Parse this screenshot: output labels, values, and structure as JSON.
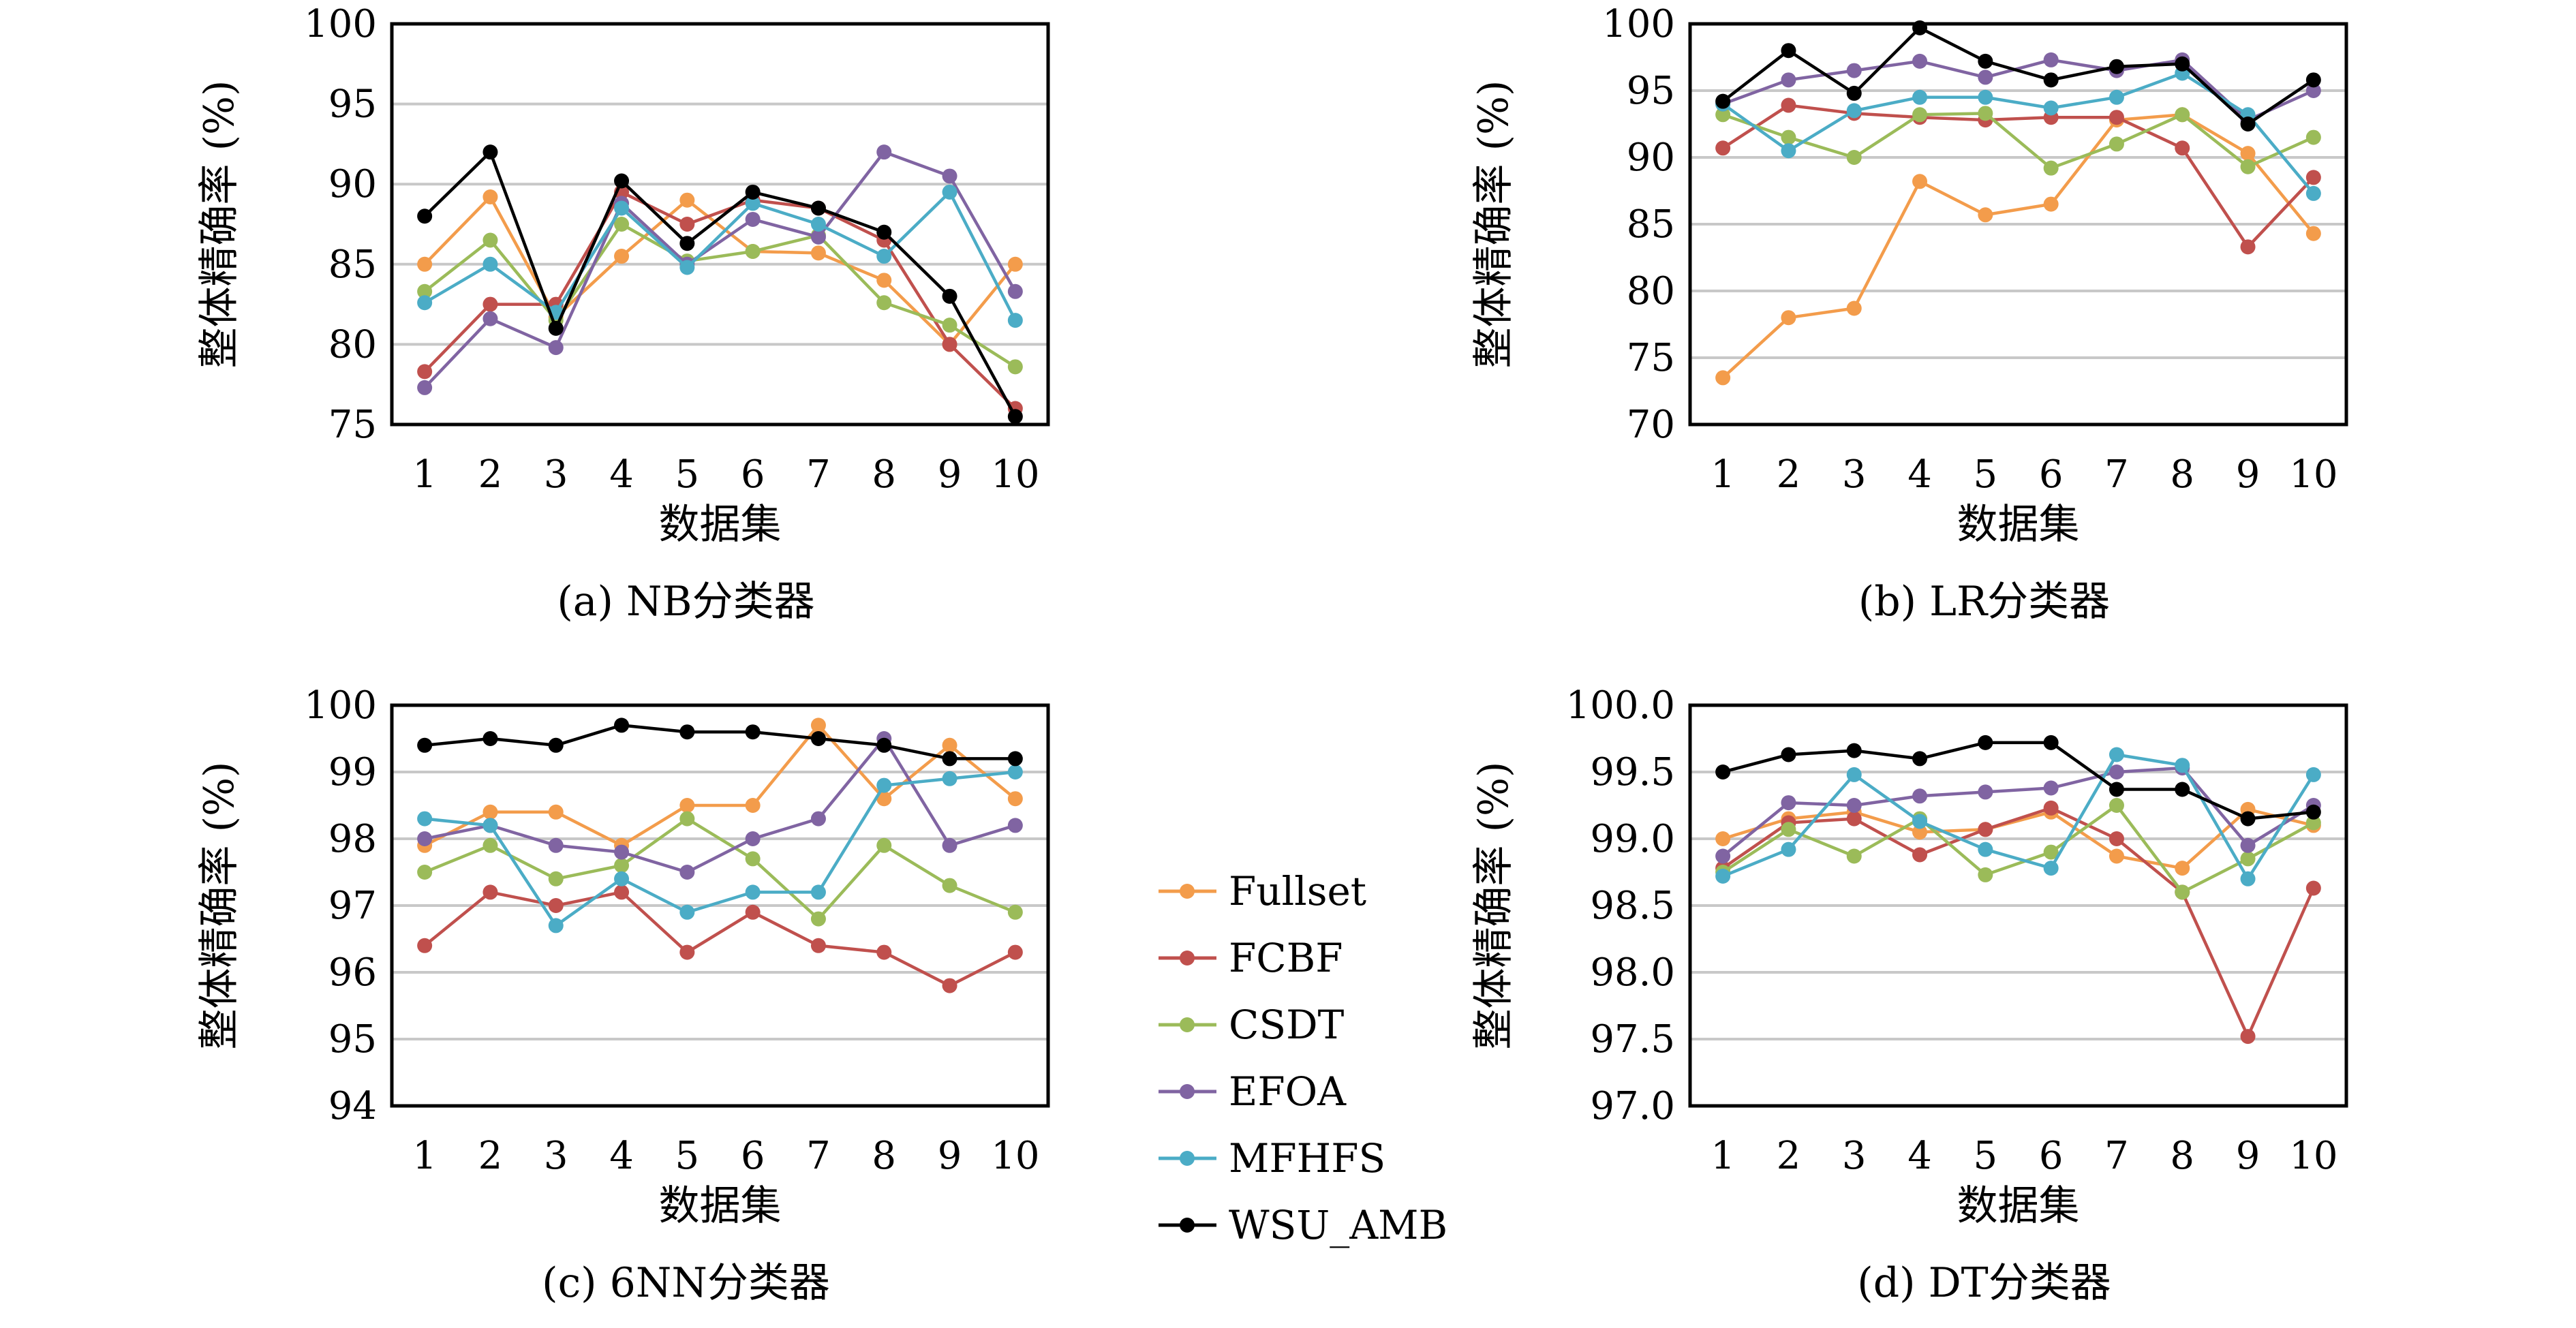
{
  "chart_data": [
    {
      "type": "line",
      "caption": "(a) NB分类器",
      "xlabel": "数据集",
      "ylabel": "整体精确率 (%)",
      "ylim": [
        75,
        100
      ],
      "yticks": [
        "75",
        "80",
        "85",
        "90",
        "95",
        "100"
      ],
      "categories": [
        "1",
        "2",
        "3",
        "4",
        "5",
        "6",
        "7",
        "8",
        "9",
        "10"
      ],
      "grid": true,
      "series": [
        {
          "name": "Fullset",
          "values": [
            85.0,
            89.2,
            81.7,
            85.5,
            89.0,
            85.8,
            85.7,
            84.0,
            80.0,
            85.0
          ]
        },
        {
          "name": "FCBF",
          "values": [
            78.3,
            82.5,
            82.5,
            89.5,
            87.5,
            89.0,
            88.5,
            86.5,
            80.0,
            76.0
          ]
        },
        {
          "name": "CSDT",
          "values": [
            83.3,
            86.5,
            81.5,
            87.5,
            85.2,
            85.8,
            86.8,
            82.6,
            81.2,
            78.6
          ]
        },
        {
          "name": "EFOA",
          "values": [
            77.3,
            81.6,
            79.8,
            88.8,
            85.0,
            87.8,
            86.7,
            92.0,
            90.5,
            83.3
          ]
        },
        {
          "name": "MFHFS",
          "values": [
            82.6,
            85.0,
            82.0,
            88.5,
            84.8,
            88.8,
            87.5,
            85.5,
            89.5,
            81.5
          ]
        },
        {
          "name": "WSU_AMB",
          "values": [
            88.0,
            92.0,
            81.0,
            90.2,
            86.3,
            89.5,
            88.5,
            87.0,
            83.0,
            75.5
          ]
        }
      ]
    },
    {
      "type": "line",
      "caption": "(b) LR分类器",
      "xlabel": "数据集",
      "ylabel": "整体精确率 (%)",
      "ylim": [
        70,
        100
      ],
      "yticks": [
        "70",
        "75",
        "80",
        "85",
        "90",
        "95",
        "100"
      ],
      "categories": [
        "1",
        "2",
        "3",
        "4",
        "5",
        "6",
        "7",
        "8",
        "9",
        "10"
      ],
      "grid": true,
      "series": [
        {
          "name": "Fullset",
          "values": [
            73.5,
            78.0,
            78.7,
            88.2,
            85.7,
            86.5,
            92.8,
            93.2,
            90.3,
            84.3
          ]
        },
        {
          "name": "FCBF",
          "values": [
            90.7,
            93.9,
            93.3,
            93.0,
            92.8,
            93.0,
            93.0,
            90.7,
            83.3,
            88.5
          ]
        },
        {
          "name": "CSDT",
          "values": [
            93.2,
            91.5,
            90.0,
            93.2,
            93.3,
            89.2,
            91.0,
            93.2,
            89.3,
            91.5
          ]
        },
        {
          "name": "EFOA",
          "values": [
            94.0,
            95.8,
            96.5,
            97.2,
            96.0,
            97.3,
            96.5,
            97.3,
            92.8,
            95.0
          ]
        },
        {
          "name": "MFHFS",
          "values": [
            94.0,
            90.5,
            93.5,
            94.5,
            94.5,
            93.7,
            94.5,
            96.3,
            93.2,
            87.3
          ]
        },
        {
          "name": "WSU_AMB",
          "values": [
            94.2,
            98.0,
            94.8,
            99.7,
            97.2,
            95.8,
            96.8,
            97.0,
            92.5,
            95.8
          ]
        }
      ]
    },
    {
      "type": "line",
      "caption": "(c) 6NN分类器",
      "xlabel": "数据集",
      "ylabel": "整体精确率 (%)",
      "ylim": [
        94,
        100
      ],
      "yticks": [
        "94",
        "95",
        "96",
        "97",
        "98",
        "99",
        "100"
      ],
      "categories": [
        "1",
        "2",
        "3",
        "4",
        "5",
        "6",
        "7",
        "8",
        "9",
        "10"
      ],
      "grid": true,
      "series": [
        {
          "name": "Fullset",
          "values": [
            97.9,
            98.4,
            98.4,
            97.9,
            98.5,
            98.5,
            99.7,
            98.6,
            99.4,
            98.6
          ]
        },
        {
          "name": "FCBF",
          "values": [
            96.4,
            97.2,
            97.0,
            97.2,
            96.3,
            96.9,
            96.4,
            96.3,
            95.8,
            96.3
          ]
        },
        {
          "name": "CSDT",
          "values": [
            97.5,
            97.9,
            97.4,
            97.6,
            98.3,
            97.7,
            96.8,
            97.9,
            97.3,
            96.9
          ]
        },
        {
          "name": "EFOA",
          "values": [
            98.0,
            98.2,
            97.9,
            97.8,
            97.5,
            98.0,
            98.3,
            99.5,
            97.9,
            98.2
          ]
        },
        {
          "name": "MFHFS",
          "values": [
            98.3,
            98.2,
            96.7,
            97.4,
            96.9,
            97.2,
            97.2,
            98.8,
            98.9,
            99.0
          ]
        },
        {
          "name": "WSU_AMB",
          "values": [
            99.4,
            99.5,
            99.4,
            99.7,
            99.6,
            99.6,
            99.5,
            99.4,
            99.2,
            99.2
          ]
        }
      ]
    },
    {
      "type": "line",
      "caption": "(d) DT分类器",
      "xlabel": "数据集",
      "ylabel": "整体精确率 (%)",
      "ylim": [
        97.0,
        100.0
      ],
      "yticks": [
        "97.0",
        "97.5",
        "98.0",
        "98.5",
        "99.0",
        "99.5",
        "100.0"
      ],
      "categories": [
        "1",
        "2",
        "3",
        "4",
        "5",
        "6",
        "7",
        "8",
        "9",
        "10"
      ],
      "grid": true,
      "series": [
        {
          "name": "Fullset",
          "values": [
            99.0,
            99.15,
            99.2,
            99.05,
            99.07,
            99.2,
            98.87,
            98.78,
            99.22,
            99.1
          ]
        },
        {
          "name": "FCBF",
          "values": [
            98.78,
            99.12,
            99.15,
            98.88,
            99.07,
            99.23,
            99.0,
            98.6,
            97.52,
            98.63
          ]
        },
        {
          "name": "CSDT",
          "values": [
            98.75,
            99.07,
            98.87,
            99.15,
            98.73,
            98.9,
            99.25,
            98.6,
            98.85,
            99.12
          ]
        },
        {
          "name": "EFOA",
          "values": [
            98.87,
            99.27,
            99.25,
            99.32,
            99.35,
            99.38,
            99.5,
            99.53,
            98.95,
            99.25
          ]
        },
        {
          "name": "MFHFS",
          "values": [
            98.72,
            98.92,
            99.48,
            99.13,
            98.92,
            98.78,
            99.63,
            99.55,
            98.7,
            99.48
          ]
        },
        {
          "name": "WSU_AMB",
          "values": [
            99.5,
            99.63,
            99.66,
            99.6,
            99.72,
            99.72,
            99.37,
            99.37,
            99.15,
            99.2
          ]
        }
      ]
    }
  ],
  "legend": {
    "placement": "center",
    "items": [
      {
        "label": "Fullset",
        "color": "#f39c4b"
      },
      {
        "label": "FCBF",
        "color": "#c0504d"
      },
      {
        "label": "CSDT",
        "color": "#9bbb59"
      },
      {
        "label": "EFOA",
        "color": "#8064a2"
      },
      {
        "label": "MFHFS",
        "color": "#4bacc6"
      },
      {
        "label": "WSU_AMB",
        "color": "#000000"
      }
    ]
  }
}
